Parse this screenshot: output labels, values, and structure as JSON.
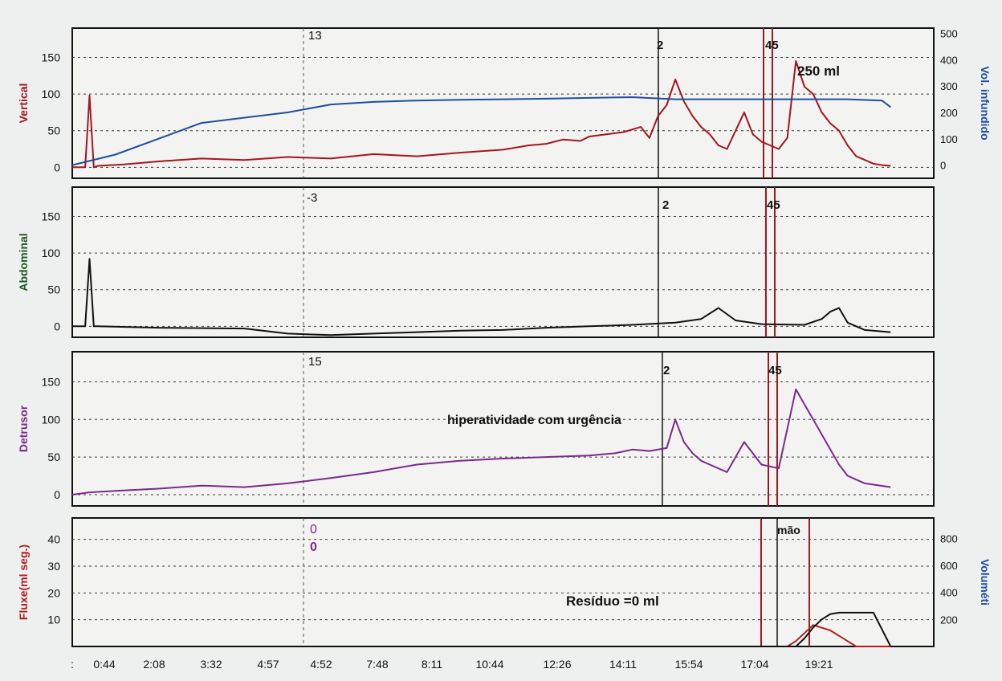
{
  "colors": {
    "vertical": "#a3161f",
    "infused": "#1f4ea0",
    "abdominal": "#111111",
    "abdominal_label": "#1f5a1f",
    "detrusor": "#7a2a8c",
    "flow": "#b21f1f",
    "volume": "#111111",
    "event_line": "#a3161f",
    "paper": "#f3f4f2",
    "grid": "#3a3a3a"
  },
  "time_ticks": [
    ":",
    "0:44",
    "2:08",
    "3:32",
    "4:57",
    "4:52",
    "7:48",
    "8:11",
    "10:44",
    "12:26",
    "14:11",
    "15:54",
    "17:04",
    "19:21"
  ],
  "chart_data": [
    {
      "type": "line",
      "panel": "vertical",
      "ylabel": "Vertical",
      "y2label": "Vol. infundido",
      "ylim": [
        -15,
        190
      ],
      "yticks": [
        0,
        50,
        100,
        150
      ],
      "y2lim": [
        -50,
        520
      ],
      "y2ticks": [
        0,
        100,
        200,
        300,
        400,
        500
      ],
      "annotations": [
        "13",
        "2",
        "45",
        "250 ml"
      ],
      "series": [
        {
          "color": "vertical",
          "x": [
            0,
            1.5,
            2,
            2.5,
            3,
            6,
            10,
            15,
            20,
            25,
            30,
            35,
            40,
            45,
            50,
            53,
            55,
            57,
            59,
            60,
            62,
            64,
            66,
            67,
            68,
            69,
            70,
            71,
            72,
            73,
            74,
            75,
            76,
            77,
            78,
            79,
            80,
            81,
            82,
            83,
            84,
            85,
            86,
            87,
            88,
            89,
            90,
            91,
            92,
            93,
            94,
            95
          ],
          "y": [
            0,
            0,
            98,
            0,
            2,
            4,
            8,
            12,
            10,
            14,
            12,
            18,
            15,
            20,
            24,
            30,
            32,
            38,
            36,
            42,
            45,
            48,
            55,
            40,
            70,
            85,
            120,
            90,
            70,
            55,
            45,
            30,
            25,
            50,
            75,
            45,
            35,
            30,
            25,
            40,
            145,
            110,
            100,
            75,
            60,
            50,
            30,
            15,
            10,
            5,
            3,
            2
          ]
        },
        {
          "color": "infused",
          "axis": "y2",
          "x": [
            0,
            5,
            10,
            15,
            20,
            25,
            30,
            35,
            40,
            45,
            50,
            55,
            60,
            65,
            70,
            75,
            80,
            85,
            90,
            94,
            95
          ],
          "y": [
            0,
            40,
            100,
            160,
            180,
            200,
            230,
            240,
            245,
            248,
            250,
            252,
            255,
            258,
            250,
            250,
            250,
            250,
            250,
            245,
            220
          ]
        }
      ]
    },
    {
      "type": "line",
      "panel": "abdominal",
      "ylabel": "Abdominal",
      "ylim": [
        -15,
        190
      ],
      "yticks": [
        0,
        50,
        100,
        150
      ],
      "annotations": [
        "-3",
        "2",
        "45"
      ],
      "series": [
        {
          "color": "abdominal",
          "x": [
            0,
            1.5,
            2,
            2.5,
            3,
            10,
            20,
            25,
            30,
            35,
            40,
            45,
            50,
            55,
            60,
            65,
            70,
            73,
            75,
            77,
            80,
            85,
            87,
            88,
            89,
            90,
            92,
            95
          ],
          "y": [
            0,
            0,
            92,
            0,
            0,
            -2,
            -3,
            -10,
            -12,
            -10,
            -8,
            -6,
            -5,
            -2,
            0,
            2,
            5,
            10,
            25,
            8,
            3,
            2,
            10,
            20,
            25,
            5,
            -5,
            -8
          ]
        }
      ]
    },
    {
      "type": "line",
      "panel": "detrusor",
      "ylabel": "Detrusor",
      "ylim": [
        -15,
        190
      ],
      "yticks": [
        0,
        50,
        100,
        150
      ],
      "annotations": [
        "15",
        "2",
        "45",
        "hiperatividade com urgência"
      ],
      "series": [
        {
          "color": "detrusor",
          "x": [
            0,
            2,
            5,
            10,
            15,
            20,
            25,
            30,
            35,
            40,
            45,
            50,
            55,
            60,
            63,
            65,
            67,
            69,
            70,
            71,
            72,
            73,
            74,
            76,
            78,
            80,
            82,
            84,
            85,
            86,
            87,
            88,
            89,
            90,
            92,
            95
          ],
          "y": [
            0,
            3,
            5,
            8,
            12,
            10,
            15,
            22,
            30,
            40,
            45,
            48,
            50,
            52,
            55,
            60,
            58,
            62,
            100,
            70,
            55,
            45,
            40,
            30,
            70,
            40,
            35,
            140,
            120,
            100,
            80,
            60,
            40,
            25,
            15,
            10
          ]
        }
      ]
    },
    {
      "type": "line",
      "panel": "flow",
      "ylabel": "Fluxe(ml seg.)",
      "y2label": "Voluméti",
      "ylim": [
        0,
        48
      ],
      "yticks": [
        10,
        20,
        30,
        40
      ],
      "y2lim": [
        0,
        950
      ],
      "y2ticks": [
        200,
        400,
        600,
        800
      ],
      "annotations": [
        "0",
        "0",
        "mão",
        "Resíduo =0 ml"
      ],
      "series": [
        {
          "color": "flow",
          "x": [
            0,
            83,
            84,
            85,
            86,
            87,
            88,
            89,
            90,
            91,
            95
          ],
          "y": [
            0,
            0,
            2,
            5,
            8,
            7,
            6,
            4,
            2,
            0,
            0
          ]
        },
        {
          "color": "volume",
          "axis": "y2",
          "x": [
            0,
            84,
            85,
            86,
            87,
            88,
            89,
            90,
            93,
            95
          ],
          "y": [
            0,
            0,
            60,
            140,
            200,
            240,
            250,
            250,
            250,
            0
          ]
        }
      ]
    }
  ]
}
